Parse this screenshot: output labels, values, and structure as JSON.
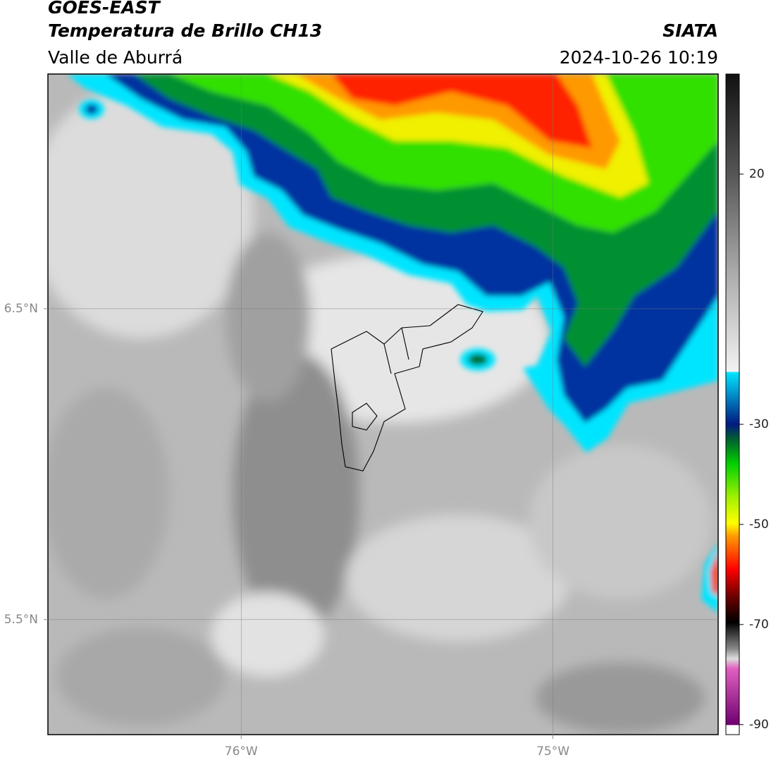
{
  "header": {
    "title": "GOES-EAST",
    "subtitle": "Temperatura de Brillo CH13",
    "region": "Valle de Aburrá",
    "source": "SIATA",
    "datetime": "2024-10-26 10:19"
  },
  "map": {
    "type": "map",
    "xlim": [
      -76.62,
      -74.47
    ],
    "ylim": [
      5.13,
      7.255
    ],
    "xticks": [
      {
        "value": -76,
        "label": "76°W"
      },
      {
        "value": -75,
        "label": "75°W"
      }
    ],
    "yticks": [
      {
        "value": 6.5,
        "label": "6.5°N"
      },
      {
        "value": 5.5,
        "label": "5.5°N"
      }
    ],
    "grid": true,
    "colorbar": {
      "lim": [
        -92,
        40
      ],
      "ticks": [
        20,
        -30,
        -50,
        -70,
        -90
      ]
    }
  }
}
